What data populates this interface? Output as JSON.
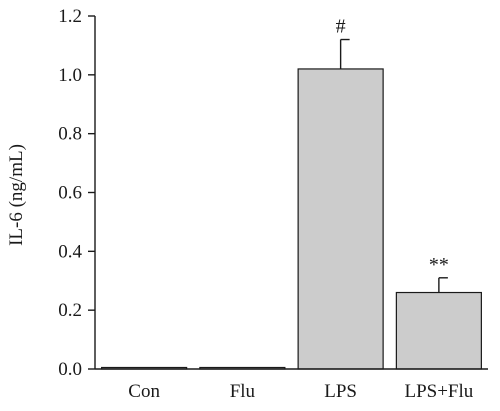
{
  "chart_data": {
    "type": "bar",
    "title": "",
    "xlabel": "",
    "ylabel": "IL-6 (ng/mL)",
    "ylim": [
      0,
      1.2
    ],
    "yticks": [
      "0.0",
      "0.2",
      "0.4",
      "0.6",
      "0.8",
      "1.0",
      "1.2"
    ],
    "categories": [
      "Con",
      "Flu",
      "LPS",
      "LPS+Flu"
    ],
    "values": [
      0.005,
      0.005,
      1.02,
      0.26
    ],
    "errors": [
      0.003,
      0.003,
      0.1,
      0.05
    ],
    "annotations": [
      "",
      "",
      "#",
      "**"
    ],
    "grid": false,
    "legend": "none",
    "colors": {
      "bar_fill": "#cccccc",
      "bar_stroke": "#1a1a1a",
      "axis": "#1a1a1a"
    }
  }
}
